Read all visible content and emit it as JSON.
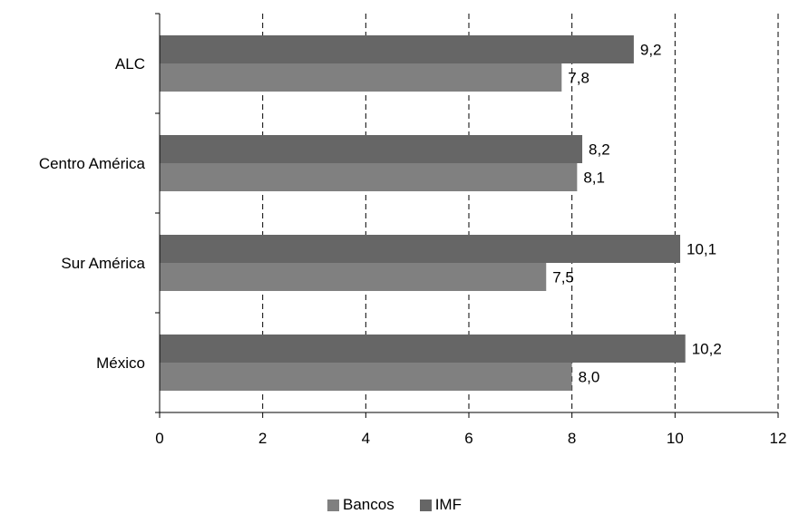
{
  "chart_data": {
    "type": "bar",
    "orientation": "horizontal",
    "title": "",
    "xlabel": "",
    "ylabel": "",
    "categories": [
      "ALC",
      "Centro América",
      "Sur América",
      "México"
    ],
    "series": [
      {
        "name": "IMF",
        "values": [
          9.2,
          8.2,
          10.1,
          10.2
        ],
        "labels": [
          "9,2",
          "8,2",
          "10,1",
          "10,2"
        ],
        "color": "#666666"
      },
      {
        "name": "Bancos",
        "values": [
          7.8,
          8.1,
          7.5,
          8.0
        ],
        "labels": [
          "7,8",
          "8,1",
          "7,5",
          "8,0"
        ],
        "color": "#808080"
      }
    ],
    "xlim": [
      0,
      12
    ],
    "xticks": [
      "0",
      "2",
      "4",
      "6",
      "8",
      "10",
      "12"
    ],
    "grid": "vertical-dashed",
    "legend_position": "bottom",
    "legend": [
      {
        "name": "Bancos",
        "color": "#808080"
      },
      {
        "name": "IMF",
        "color": "#666666"
      }
    ]
  }
}
